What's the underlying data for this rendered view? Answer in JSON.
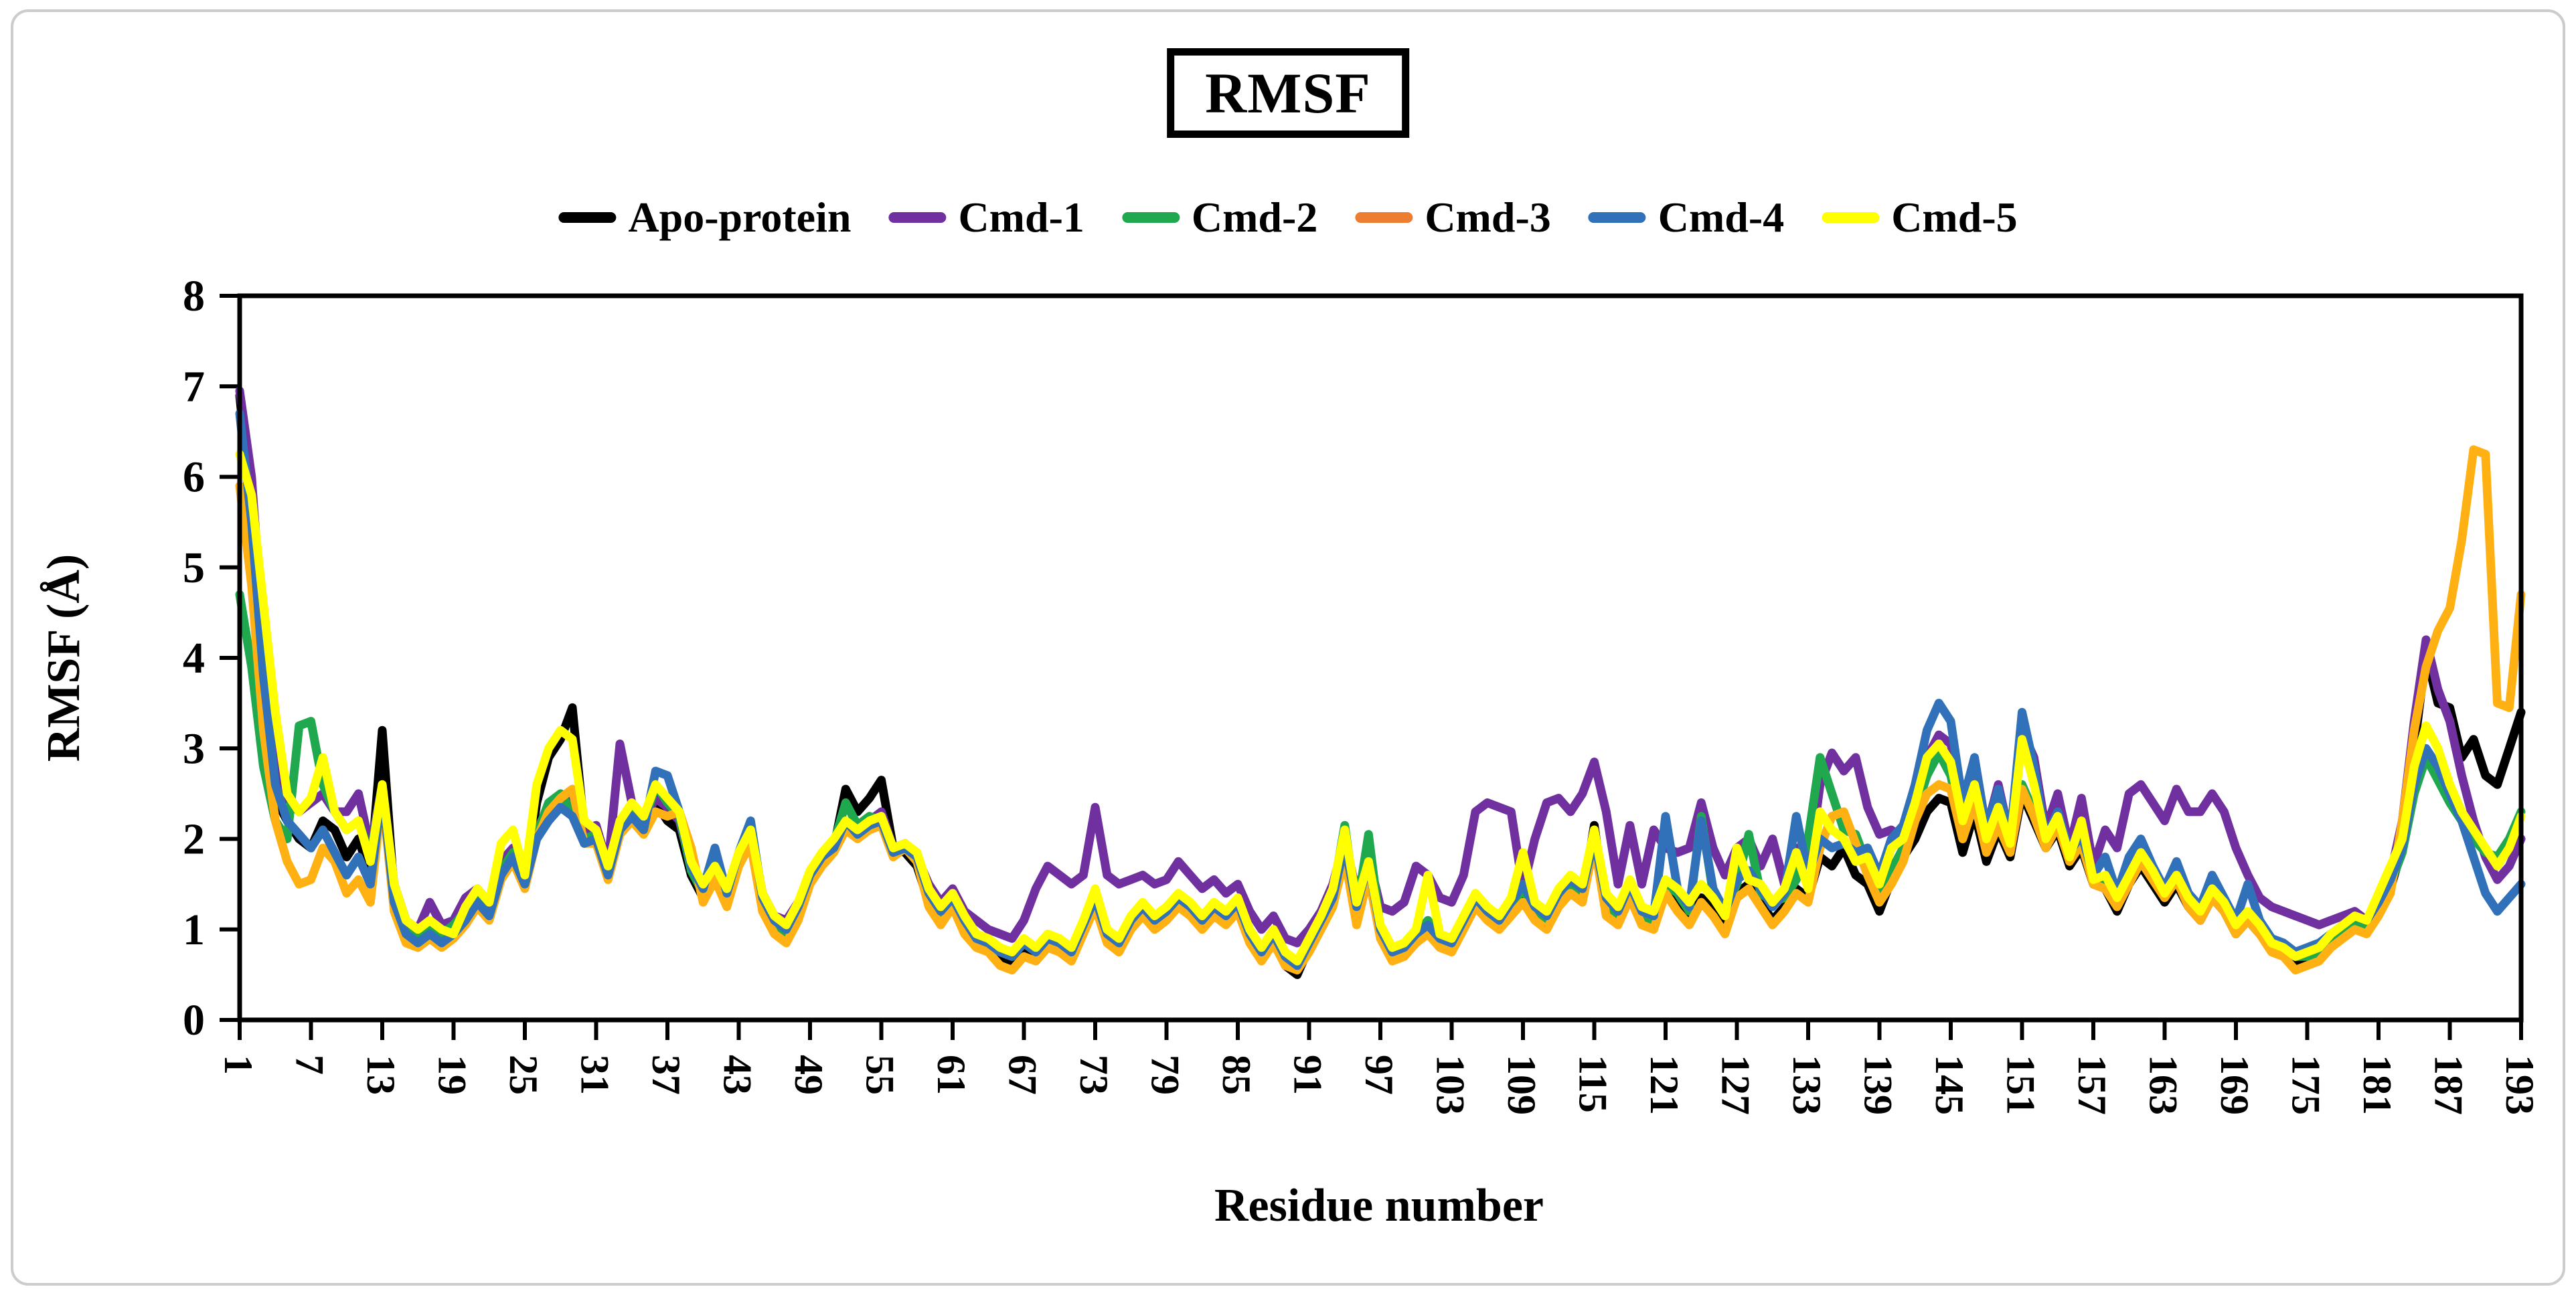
{
  "title": "RMSF",
  "x_axis_title": "Residue number",
  "y_axis_title": "RMSF (Å)",
  "legend": {
    "items": [
      {
        "label": "Apo-protein",
        "swatch_color": "#000000"
      },
      {
        "label": "Cmd-1",
        "swatch_color": "#7030A0"
      },
      {
        "label": "Cmd-2",
        "swatch_color": "#1FA84D"
      },
      {
        "label": "Cmd-3",
        "swatch_color": "#ED7D31"
      },
      {
        "label": "Cmd-4",
        "swatch_color": "#3071B9"
      },
      {
        "label": "Cmd-5",
        "swatch_color": "#FFFF00"
      }
    ]
  },
  "chart_data": {
    "type": "line",
    "title": "RMSF",
    "xlabel": "Residue number",
    "ylabel": "RMSF (Å)",
    "xlim": [
      1,
      193
    ],
    "ylim": [
      0,
      8
    ],
    "grid": false,
    "legend_position": "top",
    "yticks": [
      0,
      1,
      2,
      3,
      4,
      5,
      6,
      7,
      8
    ],
    "xticks": [
      1,
      7,
      13,
      19,
      25,
      31,
      37,
      43,
      49,
      55,
      61,
      67,
      73,
      79,
      85,
      91,
      97,
      103,
      109,
      115,
      121,
      127,
      133,
      139,
      145,
      151,
      157,
      163,
      169,
      175,
      181,
      187,
      193
    ],
    "x_start": 1,
    "x_step": 1,
    "series": [
      {
        "name": "Apo-protein",
        "color": "#000000",
        "values": [
          6.9,
          5.6,
          3.6,
          2.45,
          2.2,
          2.0,
          1.9,
          2.2,
          2.1,
          1.8,
          2.0,
          1.6,
          3.2,
          1.4,
          1.0,
          0.9,
          1.0,
          0.9,
          1.0,
          1.15,
          1.35,
          1.2,
          1.6,
          1.8,
          1.5,
          2.4,
          2.9,
          3.1,
          3.45,
          2.1,
          2.0,
          1.6,
          2.1,
          2.25,
          2.1,
          2.4,
          2.2,
          2.1,
          1.6,
          1.35,
          1.6,
          1.3,
          1.75,
          2.0,
          1.25,
          1.0,
          0.9,
          1.15,
          1.55,
          1.75,
          1.9,
          2.55,
          2.3,
          2.45,
          2.65,
          1.9,
          1.85,
          1.7,
          1.3,
          1.1,
          1.3,
          1.0,
          0.85,
          0.8,
          0.7,
          0.65,
          0.8,
          0.7,
          0.85,
          0.8,
          0.7,
          1.0,
          1.3,
          0.9,
          0.8,
          1.05,
          1.2,
          1.05,
          1.15,
          1.3,
          1.2,
          1.05,
          1.2,
          1.1,
          1.25,
          0.9,
          0.7,
          0.9,
          0.6,
          0.5,
          0.8,
          1.05,
          1.3,
          1.9,
          1.1,
          1.7,
          0.95,
          0.7,
          0.75,
          0.9,
          1.0,
          0.85,
          0.8,
          1.05,
          1.3,
          1.15,
          1.05,
          1.2,
          1.4,
          1.15,
          1.05,
          1.3,
          1.45,
          1.35,
          2.15,
          1.2,
          1.1,
          1.4,
          1.1,
          1.05,
          1.45,
          1.25,
          1.1,
          1.35,
          1.2,
          1.0,
          1.4,
          1.5,
          1.3,
          1.1,
          1.25,
          1.45,
          1.35,
          1.8,
          1.7,
          1.9,
          1.6,
          1.5,
          1.2,
          1.55,
          1.8,
          2.0,
          2.3,
          2.45,
          2.4,
          1.85,
          2.3,
          1.75,
          2.1,
          1.8,
          2.5,
          2.2,
          1.9,
          2.1,
          1.7,
          1.9,
          1.5,
          1.45,
          1.2,
          1.5,
          1.7,
          1.5,
          1.3,
          1.5,
          1.25,
          1.1,
          1.35,
          1.2,
          0.95,
          1.1,
          0.95,
          0.8,
          0.75,
          0.6,
          0.65,
          0.7,
          0.85,
          0.95,
          1.05,
          1.0,
          1.2,
          1.45,
          1.9,
          3.0,
          4.05,
          3.5,
          3.45,
          2.9,
          3.1,
          2.7,
          2.6,
          3.0,
          3.4
        ]
      },
      {
        "name": "Cmd-1",
        "color": "#7030A0",
        "values": [
          6.95,
          6.0,
          4.2,
          3.0,
          2.45,
          2.3,
          2.4,
          2.5,
          2.3,
          2.3,
          2.5,
          1.9,
          2.6,
          1.5,
          1.1,
          1.0,
          1.3,
          1.05,
          1.1,
          1.35,
          1.45,
          1.3,
          1.75,
          1.9,
          1.6,
          2.1,
          2.35,
          2.45,
          2.4,
          2.1,
          2.15,
          1.7,
          3.05,
          2.4,
          2.2,
          2.45,
          2.35,
          2.2,
          1.7,
          1.5,
          1.7,
          1.45,
          1.8,
          2.1,
          1.4,
          1.15,
          1.1,
          1.3,
          1.6,
          1.8,
          1.95,
          2.2,
          2.1,
          2.2,
          2.3,
          1.9,
          1.95,
          1.8,
          1.5,
          1.3,
          1.45,
          1.2,
          1.1,
          1.0,
          0.95,
          0.9,
          1.1,
          1.45,
          1.7,
          1.6,
          1.5,
          1.6,
          2.35,
          1.6,
          1.5,
          1.55,
          1.6,
          1.5,
          1.55,
          1.75,
          1.6,
          1.45,
          1.55,
          1.4,
          1.5,
          1.2,
          1.0,
          1.15,
          0.9,
          0.85,
          1.0,
          1.2,
          1.5,
          2.0,
          1.4,
          1.8,
          1.25,
          1.2,
          1.3,
          1.7,
          1.6,
          1.35,
          1.3,
          1.6,
          2.3,
          2.4,
          2.35,
          2.3,
          1.45,
          2.0,
          2.4,
          2.45,
          2.3,
          2.5,
          2.85,
          2.3,
          1.5,
          2.15,
          1.5,
          2.1,
          1.9,
          1.85,
          1.9,
          2.4,
          1.9,
          1.6,
          1.9,
          2.0,
          1.7,
          2.0,
          1.5,
          1.9,
          1.6,
          2.6,
          2.95,
          2.75,
          2.9,
          2.35,
          2.05,
          2.1,
          2.0,
          2.5,
          2.9,
          3.15,
          3.05,
          2.5,
          2.75,
          2.1,
          2.6,
          2.0,
          3.2,
          2.9,
          2.1,
          2.5,
          1.9,
          2.45,
          1.7,
          2.1,
          1.9,
          2.5,
          2.6,
          2.4,
          2.2,
          2.55,
          2.3,
          2.3,
          2.5,
          2.3,
          1.9,
          1.6,
          1.35,
          1.25,
          1.2,
          1.15,
          1.1,
          1.05,
          1.1,
          1.15,
          1.2,
          1.1,
          1.3,
          1.6,
          2.2,
          3.3,
          4.2,
          3.65,
          3.3,
          2.7,
          2.2,
          1.8,
          1.55,
          1.7,
          2.0
        ]
      },
      {
        "name": "Cmd-2",
        "color": "#1FA84D",
        "values": [
          4.7,
          3.9,
          2.8,
          2.2,
          2.0,
          3.25,
          3.3,
          2.6,
          2.3,
          2.1,
          2.2,
          1.8,
          2.6,
          1.45,
          1.05,
          0.95,
          1.05,
          0.95,
          1.05,
          1.2,
          1.4,
          1.25,
          1.65,
          1.85,
          1.55,
          2.05,
          2.4,
          2.5,
          2.3,
          2.0,
          2.05,
          1.65,
          2.15,
          2.3,
          2.15,
          2.6,
          2.4,
          2.25,
          1.65,
          1.4,
          1.65,
          1.35,
          1.8,
          2.05,
          1.3,
          1.05,
          0.95,
          1.2,
          1.6,
          1.8,
          1.95,
          2.4,
          2.15,
          2.25,
          2.2,
          1.85,
          1.9,
          1.75,
          1.35,
          1.15,
          1.35,
          1.05,
          0.9,
          0.85,
          0.75,
          0.7,
          0.85,
          0.75,
          0.9,
          0.85,
          0.75,
          1.05,
          1.35,
          0.95,
          0.85,
          1.1,
          1.25,
          1.1,
          1.2,
          1.35,
          1.25,
          1.1,
          1.25,
          1.15,
          1.3,
          0.95,
          0.75,
          0.95,
          0.65,
          0.6,
          0.85,
          1.1,
          1.4,
          2.15,
          1.2,
          2.05,
          1.0,
          0.75,
          0.8,
          0.95,
          1.1,
          0.9,
          0.85,
          1.1,
          1.35,
          1.2,
          1.1,
          1.25,
          1.45,
          1.2,
          1.1,
          1.35,
          1.5,
          1.4,
          2.0,
          1.3,
          1.15,
          1.45,
          1.15,
          1.1,
          1.5,
          1.4,
          1.2,
          2.25,
          1.4,
          1.2,
          1.5,
          2.05,
          1.4,
          1.3,
          1.35,
          1.55,
          2.0,
          2.9,
          2.5,
          2.1,
          2.05,
          1.7,
          1.35,
          1.65,
          1.9,
          2.3,
          2.7,
          2.95,
          2.7,
          2.1,
          2.45,
          1.95,
          2.2,
          1.9,
          2.6,
          2.3,
          1.95,
          2.2,
          1.8,
          2.0,
          1.55,
          1.5,
          1.3,
          1.55,
          1.9,
          1.6,
          1.4,
          1.6,
          1.3,
          1.15,
          1.4,
          1.25,
          1.0,
          1.15,
          1.0,
          0.85,
          0.8,
          0.7,
          0.7,
          0.75,
          0.9,
          1.0,
          1.1,
          1.05,
          1.25,
          1.5,
          1.85,
          2.5,
          2.9,
          2.65,
          2.4,
          2.2,
          2.0,
          1.85,
          1.8,
          2.0,
          2.3
        ]
      },
      {
        "name": "Cmd-3",
        "color": "#FFB114",
        "legend_color": "#ED7D31",
        "values": [
          5.9,
          4.8,
          3.2,
          2.2,
          1.75,
          1.5,
          1.55,
          1.9,
          1.75,
          1.4,
          1.55,
          1.3,
          2.5,
          1.2,
          0.85,
          0.8,
          0.9,
          0.8,
          0.9,
          1.05,
          1.25,
          1.1,
          1.55,
          1.75,
          1.45,
          2.0,
          2.3,
          2.45,
          2.55,
          1.95,
          1.95,
          1.55,
          2.05,
          2.2,
          2.05,
          2.3,
          2.25,
          2.3,
          1.9,
          1.3,
          1.55,
          1.25,
          1.7,
          1.95,
          1.2,
          0.95,
          0.85,
          1.1,
          1.5,
          1.7,
          1.85,
          2.1,
          2.0,
          2.1,
          2.15,
          1.8,
          1.9,
          1.75,
          1.25,
          1.05,
          1.25,
          0.95,
          0.8,
          0.75,
          0.6,
          0.55,
          0.7,
          0.65,
          0.8,
          0.75,
          0.65,
          0.95,
          1.25,
          0.85,
          0.75,
          1.0,
          1.15,
          1.0,
          1.1,
          1.25,
          1.15,
          1.0,
          1.15,
          1.05,
          1.2,
          0.85,
          0.65,
          0.85,
          0.6,
          0.55,
          0.75,
          1.0,
          1.25,
          1.8,
          1.05,
          1.6,
          0.9,
          0.65,
          0.7,
          0.85,
          0.95,
          0.8,
          0.75,
          1.0,
          1.25,
          1.1,
          1.0,
          1.15,
          1.3,
          1.1,
          1.0,
          1.25,
          1.4,
          1.3,
          1.95,
          1.15,
          1.05,
          1.35,
          1.05,
          1.0,
          1.4,
          1.2,
          1.05,
          1.3,
          1.15,
          0.95,
          1.35,
          1.45,
          1.25,
          1.05,
          1.2,
          1.4,
          1.3,
          1.9,
          2.25,
          2.3,
          1.95,
          1.6,
          1.3,
          1.5,
          1.75,
          2.2,
          2.5,
          2.6,
          2.55,
          2.0,
          2.4,
          1.85,
          2.15,
          1.85,
          2.55,
          2.25,
          1.9,
          2.15,
          1.75,
          1.95,
          1.5,
          1.45,
          1.25,
          1.5,
          1.75,
          1.55,
          1.35,
          1.55,
          1.25,
          1.1,
          1.35,
          1.2,
          0.95,
          1.1,
          0.95,
          0.75,
          0.7,
          0.55,
          0.6,
          0.65,
          0.8,
          0.9,
          1.0,
          0.95,
          1.15,
          1.4,
          2.2,
          3.2,
          3.9,
          4.3,
          4.55,
          5.3,
          6.3,
          6.25,
          3.5,
          3.45,
          4.7
        ]
      },
      {
        "name": "Cmd-4",
        "color": "#3071B9",
        "values": [
          6.7,
          5.5,
          3.8,
          2.6,
          2.2,
          2.05,
          1.9,
          2.1,
          1.85,
          1.6,
          1.8,
          1.5,
          2.55,
          1.3,
          0.95,
          0.85,
          0.95,
          0.85,
          0.95,
          1.1,
          1.3,
          1.15,
          1.6,
          1.8,
          1.5,
          2.0,
          2.2,
          2.35,
          2.25,
          1.95,
          2.0,
          1.6,
          2.1,
          2.25,
          2.1,
          2.75,
          2.7,
          2.3,
          1.7,
          1.45,
          1.9,
          1.4,
          1.85,
          2.2,
          1.35,
          1.1,
          1.0,
          1.25,
          1.6,
          1.8,
          1.9,
          2.2,
          2.05,
          2.15,
          2.2,
          1.85,
          1.9,
          1.8,
          1.4,
          1.2,
          1.35,
          1.1,
          0.9,
          0.85,
          0.75,
          0.7,
          0.85,
          0.75,
          0.9,
          0.85,
          0.75,
          1.05,
          1.35,
          0.95,
          0.85,
          1.1,
          1.25,
          1.1,
          1.2,
          1.35,
          1.25,
          1.1,
          1.25,
          1.15,
          1.3,
          0.95,
          0.75,
          0.95,
          0.7,
          0.6,
          0.85,
          1.1,
          1.35,
          1.95,
          1.25,
          1.75,
          1.0,
          0.75,
          0.8,
          0.95,
          1.05,
          0.9,
          0.85,
          1.1,
          1.35,
          1.2,
          1.1,
          1.3,
          1.5,
          1.25,
          1.15,
          1.4,
          1.55,
          1.45,
          2.0,
          1.35,
          1.2,
          1.5,
          1.2,
          1.15,
          2.25,
          1.45,
          1.25,
          2.2,
          1.45,
          1.2,
          1.55,
          1.65,
          1.45,
          1.25,
          1.4,
          2.25,
          1.6,
          2.0,
          1.9,
          1.95,
          1.85,
          1.9,
          1.6,
          2.0,
          2.15,
          2.6,
          3.2,
          3.5,
          3.3,
          2.4,
          2.9,
          2.1,
          2.55,
          2.0,
          3.4,
          2.8,
          2.0,
          2.3,
          1.85,
          2.05,
          1.6,
          1.8,
          1.4,
          1.8,
          2.0,
          1.7,
          1.45,
          1.75,
          1.4,
          1.25,
          1.6,
          1.35,
          1.1,
          1.5,
          1.1,
          0.9,
          0.85,
          0.75,
          0.8,
          0.85,
          0.95,
          1.05,
          1.15,
          1.1,
          1.3,
          1.55,
          1.9,
          2.6,
          3.0,
          2.8,
          2.5,
          2.2,
          1.8,
          1.4,
          1.2,
          1.35,
          1.5
        ]
      },
      {
        "name": "Cmd-5",
        "color": "#FFFF00",
        "values": [
          6.25,
          5.8,
          4.6,
          3.4,
          2.5,
          2.3,
          2.45,
          2.9,
          2.3,
          2.1,
          2.2,
          1.75,
          2.6,
          1.5,
          1.1,
          1.0,
          1.1,
          1.0,
          0.95,
          1.25,
          1.45,
          1.3,
          1.95,
          2.1,
          1.6,
          2.6,
          3.0,
          3.2,
          3.1,
          2.2,
          2.1,
          1.7,
          2.2,
          2.4,
          2.25,
          2.6,
          2.45,
          2.3,
          1.75,
          1.5,
          1.7,
          1.45,
          1.85,
          2.1,
          1.4,
          1.15,
          1.05,
          1.3,
          1.65,
          1.85,
          2.0,
          2.2,
          2.1,
          2.2,
          2.25,
          1.9,
          1.95,
          1.85,
          1.45,
          1.25,
          1.4,
          1.15,
          0.95,
          0.9,
          0.8,
          0.75,
          0.9,
          0.8,
          0.95,
          0.9,
          0.8,
          1.1,
          1.45,
          1.0,
          0.9,
          1.15,
          1.3,
          1.15,
          1.25,
          1.4,
          1.3,
          1.15,
          1.3,
          1.2,
          1.35,
          1.0,
          0.8,
          1.0,
          0.75,
          0.65,
          0.9,
          1.15,
          1.45,
          2.1,
          1.3,
          1.75,
          1.05,
          0.8,
          0.85,
          1.0,
          1.6,
          0.95,
          0.9,
          1.15,
          1.4,
          1.25,
          1.15,
          1.35,
          1.85,
          1.3,
          1.2,
          1.45,
          1.6,
          1.5,
          2.1,
          1.4,
          1.25,
          1.55,
          1.25,
          1.2,
          1.55,
          1.45,
          1.3,
          1.5,
          1.35,
          1.15,
          1.9,
          1.55,
          1.5,
          1.3,
          1.45,
          1.85,
          1.45,
          2.3,
          2.1,
          2.0,
          1.75,
          1.8,
          1.5,
          1.9,
          2.0,
          2.4,
          2.9,
          3.05,
          2.85,
          2.2,
          2.6,
          2.0,
          2.35,
          1.95,
          3.1,
          2.6,
          2.0,
          2.25,
          1.8,
          2.2,
          1.55,
          1.6,
          1.35,
          1.6,
          1.85,
          1.65,
          1.4,
          1.6,
          1.35,
          1.2,
          1.45,
          1.3,
          1.05,
          1.2,
          1.05,
          0.85,
          0.8,
          0.7,
          0.75,
          0.8,
          0.95,
          1.05,
          1.15,
          1.1,
          1.4,
          1.7,
          2.0,
          2.8,
          3.25,
          3.0,
          2.6,
          2.3,
          2.1,
          1.9,
          1.7,
          1.9,
          2.25
        ]
      }
    ]
  }
}
